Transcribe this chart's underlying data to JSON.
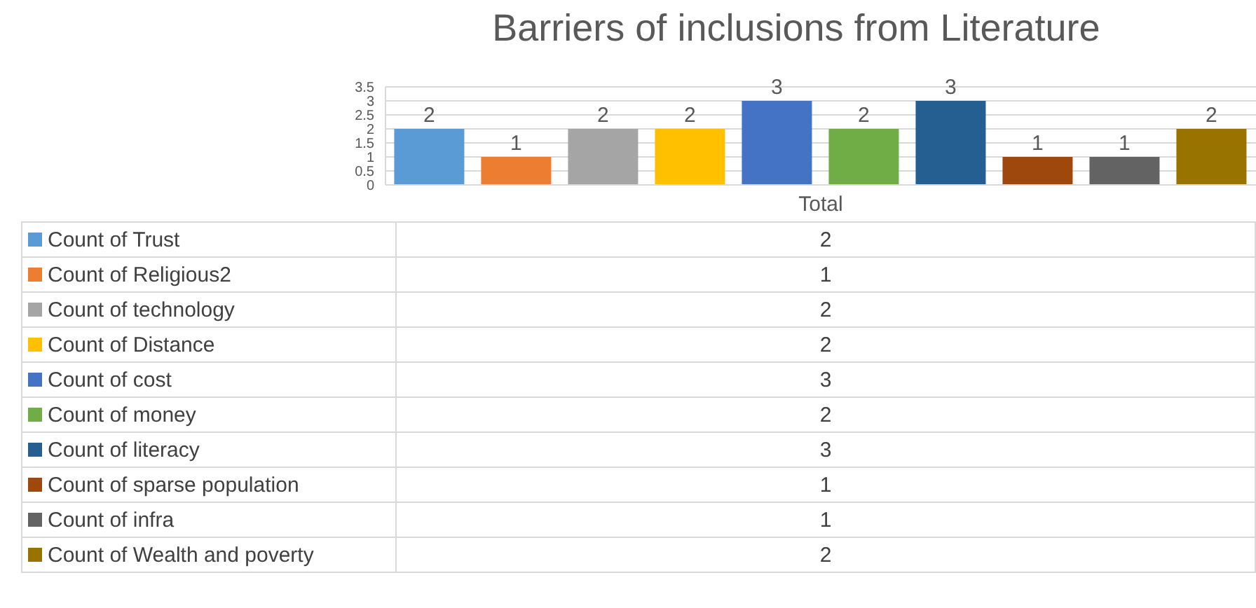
{
  "chart_data": {
    "type": "bar",
    "title": "Barriers of inclusions from Literature",
    "categories": [
      "Total"
    ],
    "series": [
      {
        "name": "Count of Trust",
        "color": "#5b9bd5",
        "values": [
          2
        ]
      },
      {
        "name": "Count of Religious2",
        "color": "#ed7d31",
        "values": [
          1
        ]
      },
      {
        "name": "Count of technology",
        "color": "#a5a5a5",
        "values": [
          2
        ]
      },
      {
        "name": "Count of Distance",
        "color": "#ffc000",
        "values": [
          2
        ]
      },
      {
        "name": "Count of cost",
        "color": "#4472c4",
        "values": [
          3
        ]
      },
      {
        "name": "Count of money",
        "color": "#70ad47",
        "values": [
          2
        ]
      },
      {
        "name": "Count of literacy",
        "color": "#255e91",
        "values": [
          3
        ]
      },
      {
        "name": "Count of sparse population",
        "color": "#9e480e",
        "values": [
          1
        ]
      },
      {
        "name": "Count of infra",
        "color": "#636363",
        "values": [
          1
        ]
      },
      {
        "name": "Count of Wealth and poverty",
        "color": "#997300",
        "values": [
          2
        ]
      }
    ],
    "annotations": [
      "2",
      "1",
      "2",
      "2",
      "3",
      "2",
      "3",
      "1",
      "1",
      "2"
    ],
    "ylim": [
      0,
      3.5
    ],
    "yticks": [
      0,
      0.5,
      1,
      1.5,
      2,
      2.5,
      3,
      3.5
    ],
    "grid": "y",
    "legend": "bottom",
    "data_labels": true
  }
}
